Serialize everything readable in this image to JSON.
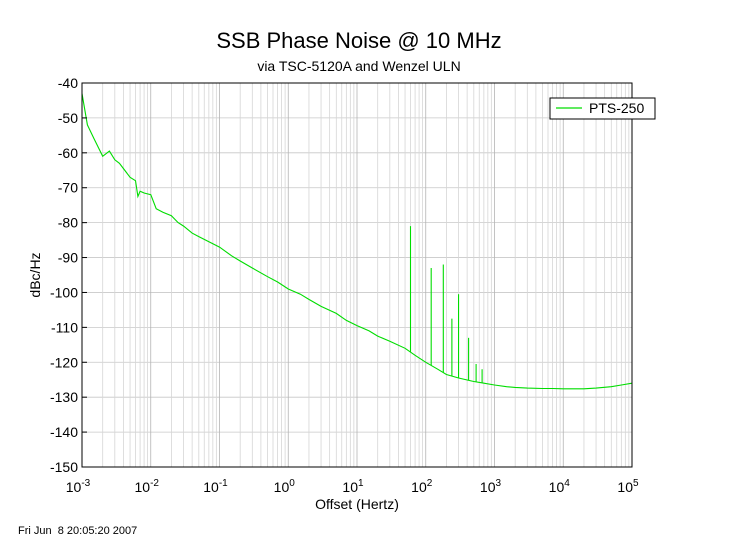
{
  "chart_data": {
    "type": "line",
    "title": "SSB Phase Noise @ 10 MHz",
    "subtitle": "via TSC-5120A and Wenzel ULN",
    "xlabel": "Offset (Hertz)",
    "ylabel": "dBc/Hz",
    "x_scale": "log",
    "xlim": [
      0.001,
      100000
    ],
    "ylim": [
      -150,
      -40
    ],
    "yticks": [
      -40,
      -50,
      -60,
      -70,
      -80,
      -90,
      -100,
      -110,
      -120,
      -130,
      -140,
      -150
    ],
    "xticks": [
      {
        "value": 0.001,
        "base": "10",
        "exp": "-3"
      },
      {
        "value": 0.01,
        "base": "10",
        "exp": "-2"
      },
      {
        "value": 0.1,
        "base": "10",
        "exp": "-1"
      },
      {
        "value": 1,
        "base": "10",
        "exp": "0"
      },
      {
        "value": 10,
        "base": "10",
        "exp": "1"
      },
      {
        "value": 100,
        "base": "10",
        "exp": "2"
      },
      {
        "value": 1000,
        "base": "10",
        "exp": "3"
      },
      {
        "value": 10000,
        "base": "10",
        "exp": "4"
      },
      {
        "value": 100000,
        "base": "10",
        "exp": "5"
      }
    ],
    "grid": true,
    "legend_position": "top-right",
    "series": [
      {
        "name": "PTS-250",
        "color": "#00dd00",
        "x": [
          0.001,
          0.0012,
          0.0015,
          0.002,
          0.0025,
          0.003,
          0.0035,
          0.004,
          0.005,
          0.006,
          0.0065,
          0.007,
          0.008,
          0.01,
          0.012,
          0.015,
          0.02,
          0.025,
          0.03,
          0.04,
          0.05,
          0.07,
          0.1,
          0.15,
          0.2,
          0.3,
          0.5,
          0.7,
          1,
          1.5,
          2,
          3,
          5,
          7,
          10,
          15,
          20,
          30,
          50,
          70,
          100,
          150,
          200,
          300,
          500,
          700,
          1000,
          1500,
          2000,
          3000,
          5000,
          7000,
          10000,
          15000,
          20000,
          30000,
          50000,
          70000,
          100000
        ],
        "values": [
          -43,
          -52,
          -56,
          -61,
          -59.5,
          -62,
          -63,
          -64.5,
          -67,
          -68,
          -72.5,
          -71,
          -71.5,
          -72,
          -76,
          -77,
          -78,
          -80,
          -81,
          -83,
          -84,
          -85.5,
          -87,
          -89.5,
          -91,
          -93,
          -95.5,
          -97,
          -99,
          -100.5,
          -102,
          -104,
          -106,
          -108,
          -109.5,
          -111,
          -112.5,
          -114,
          -116,
          -118,
          -120,
          -122,
          -123.5,
          -124.5,
          -125.5,
          -126,
          -126.5,
          -127,
          -127.2,
          -127.4,
          -127.5,
          -127.5,
          -127.6,
          -127.6,
          -127.6,
          -127.4,
          -127,
          -126.5,
          -126
        ],
        "spurs": [
          {
            "x": 60,
            "y": -81
          },
          {
            "x": 120,
            "y": -93
          },
          {
            "x": 180,
            "y": -92
          },
          {
            "x": 240,
            "y": -107.5
          },
          {
            "x": 300,
            "y": -100.5
          },
          {
            "x": 420,
            "y": -113
          },
          {
            "x": 540,
            "y": -120.5
          },
          {
            "x": 660,
            "y": -122
          }
        ]
      }
    ]
  },
  "footer": {
    "timestamp": "Fri Jun  8 20:05:20 2007"
  }
}
